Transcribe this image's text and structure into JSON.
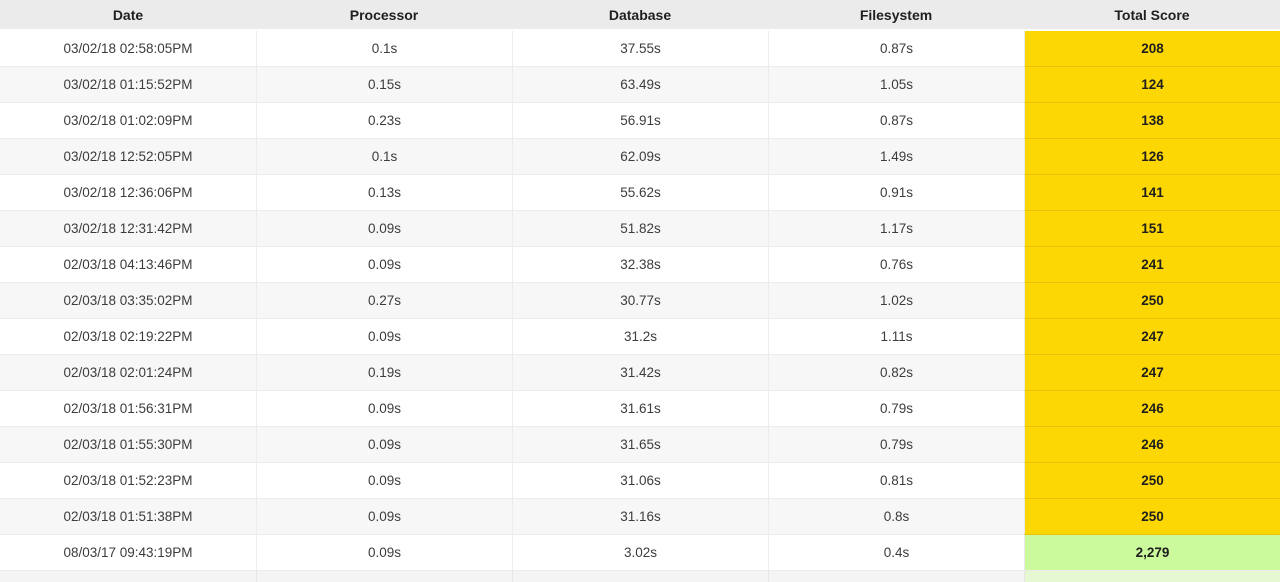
{
  "table": {
    "columns": [
      {
        "key": "date",
        "label": "Date"
      },
      {
        "key": "processor",
        "label": "Processor"
      },
      {
        "key": "database",
        "label": "Database"
      },
      {
        "key": "filesystem",
        "label": "Filesystem"
      },
      {
        "key": "total_score",
        "label": "Total Score"
      }
    ],
    "rows": [
      {
        "date": "03/02/18 02:58:05PM",
        "processor": "0.1s",
        "database": "37.55s",
        "filesystem": "0.87s",
        "total_score": "208",
        "score_highlight": "yellow"
      },
      {
        "date": "03/02/18 01:15:52PM",
        "processor": "0.15s",
        "database": "63.49s",
        "filesystem": "1.05s",
        "total_score": "124",
        "score_highlight": "yellow"
      },
      {
        "date": "03/02/18 01:02:09PM",
        "processor": "0.23s",
        "database": "56.91s",
        "filesystem": "0.87s",
        "total_score": "138",
        "score_highlight": "yellow"
      },
      {
        "date": "03/02/18 12:52:05PM",
        "processor": "0.1s",
        "database": "62.09s",
        "filesystem": "1.49s",
        "total_score": "126",
        "score_highlight": "yellow"
      },
      {
        "date": "03/02/18 12:36:06PM",
        "processor": "0.13s",
        "database": "55.62s",
        "filesystem": "0.91s",
        "total_score": "141",
        "score_highlight": "yellow"
      },
      {
        "date": "03/02/18 12:31:42PM",
        "processor": "0.09s",
        "database": "51.82s",
        "filesystem": "1.17s",
        "total_score": "151",
        "score_highlight": "yellow"
      },
      {
        "date": "02/03/18 04:13:46PM",
        "processor": "0.09s",
        "database": "32.38s",
        "filesystem": "0.76s",
        "total_score": "241",
        "score_highlight": "yellow"
      },
      {
        "date": "02/03/18 03:35:02PM",
        "processor": "0.27s",
        "database": "30.77s",
        "filesystem": "1.02s",
        "total_score": "250",
        "score_highlight": "yellow"
      },
      {
        "date": "02/03/18 02:19:22PM",
        "processor": "0.09s",
        "database": "31.2s",
        "filesystem": "1.11s",
        "total_score": "247",
        "score_highlight": "yellow"
      },
      {
        "date": "02/03/18 02:01:24PM",
        "processor": "0.19s",
        "database": "31.42s",
        "filesystem": "0.82s",
        "total_score": "247",
        "score_highlight": "yellow"
      },
      {
        "date": "02/03/18 01:56:31PM",
        "processor": "0.09s",
        "database": "31.61s",
        "filesystem": "0.79s",
        "total_score": "246",
        "score_highlight": "yellow"
      },
      {
        "date": "02/03/18 01:55:30PM",
        "processor": "0.09s",
        "database": "31.65s",
        "filesystem": "0.79s",
        "total_score": "246",
        "score_highlight": "yellow"
      },
      {
        "date": "02/03/18 01:52:23PM",
        "processor": "0.09s",
        "database": "31.06s",
        "filesystem": "0.81s",
        "total_score": "250",
        "score_highlight": "yellow"
      },
      {
        "date": "02/03/18 01:51:38PM",
        "processor": "0.09s",
        "database": "31.16s",
        "filesystem": "0.8s",
        "total_score": "250",
        "score_highlight": "yellow"
      },
      {
        "date": "08/03/17 09:43:19PM",
        "processor": "0.09s",
        "database": "3.02s",
        "filesystem": "0.4s",
        "total_score": "2,279",
        "score_highlight": "green"
      }
    ],
    "colors": {
      "score_yellow": "#fcd703",
      "score_green": "#cbfa9d",
      "header_bg": "#ebebeb",
      "row_alt_bg": "#f7f7f7"
    },
    "partial_next_row_visible": true
  }
}
